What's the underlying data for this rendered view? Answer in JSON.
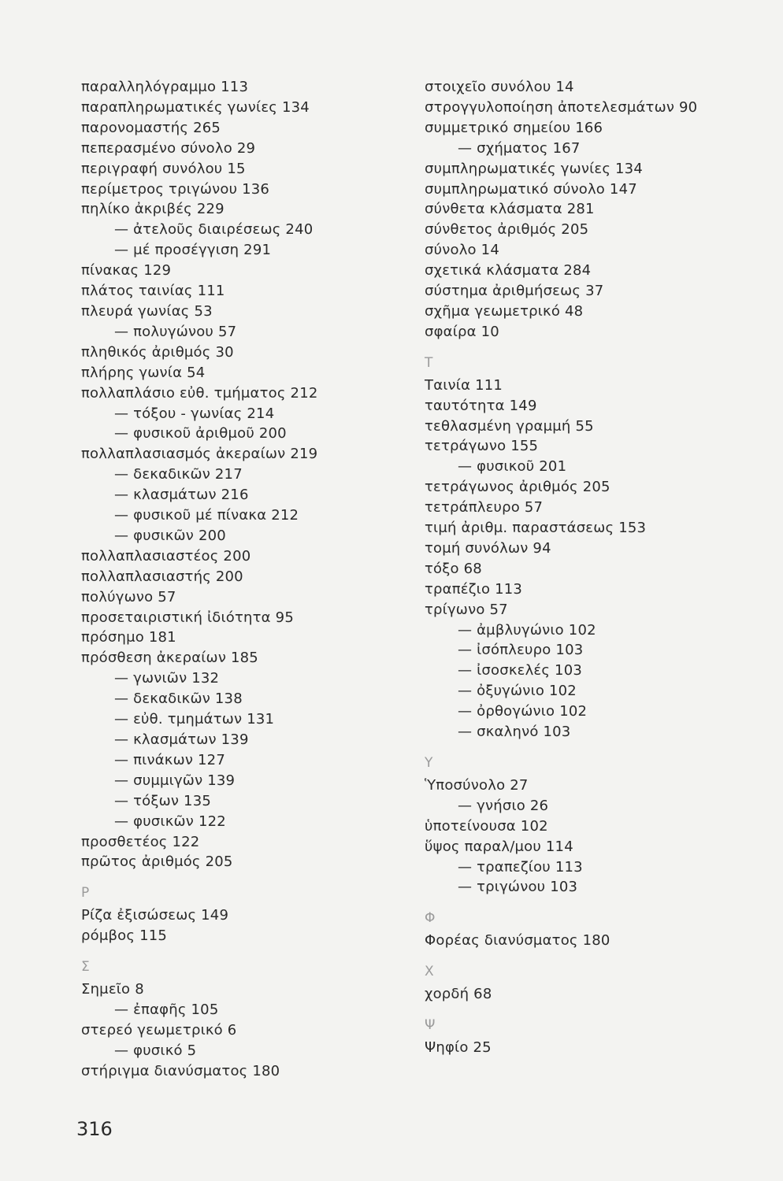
{
  "page_number": "316",
  "left_column": [
    {
      "type": "entry",
      "text": "παραλληλόγραμμο 113"
    },
    {
      "type": "entry",
      "text": "παραπληρωματικές γωνίες 134"
    },
    {
      "type": "entry",
      "text": "παρονομαστής  265"
    },
    {
      "type": "entry",
      "text": "πεπερασμένο σύνολο 29"
    },
    {
      "type": "entry",
      "text": "περιγραφή συνόλου 15"
    },
    {
      "type": "entry",
      "text": "περίμετρος τριγώνου 136"
    },
    {
      "type": "entry",
      "text": "πηλίκο ἀκριβές 229"
    },
    {
      "type": "sub",
      "text": "— ἀτελοῦς διαιρέσεως 240"
    },
    {
      "type": "sub",
      "text": "— μέ προσέγγιση 291"
    },
    {
      "type": "entry",
      "text": "πίνακας 129"
    },
    {
      "type": "entry",
      "text": "πλάτος ταινίας 111"
    },
    {
      "type": "entry",
      "text": "πλευρά γωνίας 53"
    },
    {
      "type": "sub",
      "text": "— πολυγώνου 57"
    },
    {
      "type": "entry",
      "text": "πληθικός ἀριθμός 30"
    },
    {
      "type": "entry",
      "text": "πλήρης γωνία 54"
    },
    {
      "type": "entry",
      "text": "πολλαπλάσιο εὐθ. τμήματος 212"
    },
    {
      "type": "sub",
      "text": "— τόξου - γωνίας 214"
    },
    {
      "type": "sub",
      "text": "— φυσικοῦ ἀριθμοῦ 200"
    },
    {
      "type": "entry",
      "text": "πολλαπλασιασμός ἀκεραίων 219"
    },
    {
      "type": "sub",
      "text": "— δεκαδικῶν 217"
    },
    {
      "type": "sub",
      "text": "— κλασμάτων 216"
    },
    {
      "type": "sub",
      "text": "— φυσικοῦ μέ πίνακα 212"
    },
    {
      "type": "sub",
      "text": "— φυσικῶν 200"
    },
    {
      "type": "entry",
      "text": "πολλαπλασιαστέος 200"
    },
    {
      "type": "entry",
      "text": "πολλαπλασιαστής 200"
    },
    {
      "type": "entry",
      "text": "πολύγωνο 57"
    },
    {
      "type": "entry",
      "text": "προσεταιριστική ἰδιότητα 95"
    },
    {
      "type": "entry",
      "text": "πρόσημο 181"
    },
    {
      "type": "entry",
      "text": "πρόσθεση ἀκεραίων 185"
    },
    {
      "type": "sub",
      "text": "— γωνιῶν 132"
    },
    {
      "type": "sub",
      "text": "— δεκαδικῶν 138"
    },
    {
      "type": "sub",
      "text": "— εὐθ. τμημάτων 131"
    },
    {
      "type": "sub",
      "text": "— κλασμάτων 139"
    },
    {
      "type": "sub",
      "text": "— πινάκων 127"
    },
    {
      "type": "sub",
      "text": "— συμμιγῶν 139"
    },
    {
      "type": "sub",
      "text": "— τόξων 135"
    },
    {
      "type": "sub",
      "text": "— φυσικῶν 122"
    },
    {
      "type": "entry",
      "text": "προσθετέος 122"
    },
    {
      "type": "entry",
      "text": "πρῶτος ἀριθμός 205"
    },
    {
      "type": "letter",
      "text": "Ρ"
    },
    {
      "type": "entry",
      "text": "Ρίζα ἐξισώσεως 149"
    },
    {
      "type": "entry",
      "text": "ρόμβος 115"
    },
    {
      "type": "letter",
      "text": "Σ"
    },
    {
      "type": "entry",
      "text": "Σημεῖο 8"
    },
    {
      "type": "sub",
      "text": "— ἐπαφῆς 105"
    },
    {
      "type": "entry",
      "text": "στερεό γεωμετρικό 6"
    },
    {
      "type": "sub",
      "text": "— φυσικό 5"
    },
    {
      "type": "entry",
      "text": "στήριγμα διανύσματος 180"
    }
  ],
  "right_column": [
    {
      "type": "entry",
      "text": "στοιχεῖο συνόλου 14"
    },
    {
      "type": "entry",
      "text": "στρογγυλοποίηση ἀποτελεσμάτων 90"
    },
    {
      "type": "entry",
      "text": "συμμετρικό σημείου 166"
    },
    {
      "type": "sub",
      "text": "— σχήματος 167"
    },
    {
      "type": "entry",
      "text": "συμπληρωματικές γωνίες 134"
    },
    {
      "type": "entry",
      "text": "συμπληρωματικό σύνολο 147"
    },
    {
      "type": "entry",
      "text": "σύνθετα κλάσματα 281"
    },
    {
      "type": "entry",
      "text": "σύνθετος ἀριθμός 205"
    },
    {
      "type": "entry",
      "text": "σύνολο 14"
    },
    {
      "type": "entry",
      "text": "σχετικά κλάσματα 284"
    },
    {
      "type": "entry",
      "text": "σύστημα ἀριθμήσεως 37"
    },
    {
      "type": "entry",
      "text": "σχῆμα γεωμετρικό 48"
    },
    {
      "type": "entry",
      "text": "σφαίρα 10"
    },
    {
      "type": "letter",
      "text": "Τ"
    },
    {
      "type": "entry",
      "text": "Ταινία 111"
    },
    {
      "type": "entry",
      "text": "ταυτότητα 149"
    },
    {
      "type": "entry",
      "text": "τεθλασμένη γραμμή 55"
    },
    {
      "type": "entry",
      "text": "τετράγωνο 155"
    },
    {
      "type": "sub",
      "text": "— φυσικοῦ 201"
    },
    {
      "type": "entry",
      "text": "τετράγωνος ἀριθμός 205"
    },
    {
      "type": "entry",
      "text": "τετράπλευρο 57"
    },
    {
      "type": "entry",
      "text": "τιμή ἀριθμ. παραστάσεως 153"
    },
    {
      "type": "entry",
      "text": "τομή συνόλων 94"
    },
    {
      "type": "entry",
      "text": "τόξο 68"
    },
    {
      "type": "entry",
      "text": "τραπέζιο 113"
    },
    {
      "type": "entry",
      "text": "τρίγωνο 57"
    },
    {
      "type": "sub",
      "text": "— ἀμβλυγώνιο 102"
    },
    {
      "type": "sub",
      "text": "— ἰσόπλευρο 103"
    },
    {
      "type": "sub",
      "text": "— ἰσοσκελές 103"
    },
    {
      "type": "sub",
      "text": "— ὀξυγώνιο 102"
    },
    {
      "type": "sub",
      "text": "— ὀρθογώνιο 102"
    },
    {
      "type": "sub",
      "text": "— σκαληνό 103"
    },
    {
      "type": "letter",
      "text": "Υ"
    },
    {
      "type": "entry",
      "text": "Ὑποσύνολο 27"
    },
    {
      "type": "sub",
      "text": "— γνήσιο 26"
    },
    {
      "type": "entry",
      "text": "ὑποτείνουσα 102"
    },
    {
      "type": "entry",
      "text": "ὕψος παραλ/μου 114"
    },
    {
      "type": "sub",
      "text": "— τραπεζίου 113"
    },
    {
      "type": "sub",
      "text": "— τριγώνου 103"
    },
    {
      "type": "letter",
      "text": "Φ"
    },
    {
      "type": "entry",
      "text": "Φορέας διανύσματος 180"
    },
    {
      "type": "letter",
      "text": "Χ"
    },
    {
      "type": "entry",
      "text": "χορδή 68"
    },
    {
      "type": "letter",
      "text": "Ψ"
    },
    {
      "type": "entry",
      "text": "Ψηφίο 25"
    }
  ]
}
